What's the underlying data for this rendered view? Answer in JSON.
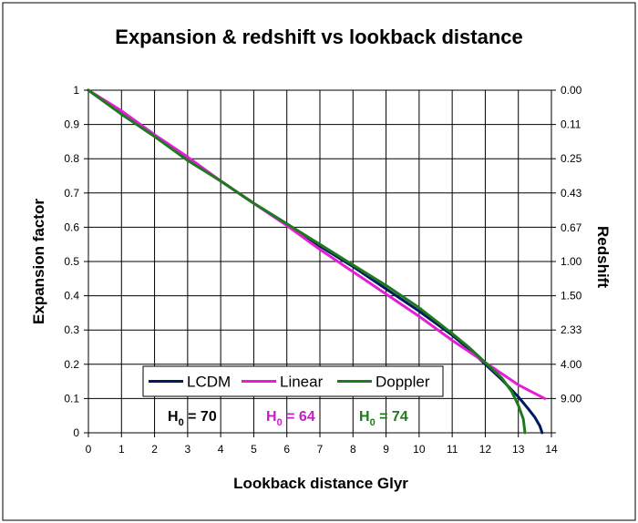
{
  "chart_data": {
    "type": "line",
    "title": "Expansion & redshift vs lookback distance",
    "xlabel": "Lookback distance Glyr",
    "ylabel": "Expansion factor",
    "y2label": "Redshift",
    "xlim": [
      0,
      14
    ],
    "ylim": [
      0,
      1
    ],
    "x_ticks": [
      "0",
      "1",
      "2",
      "3",
      "4",
      "5",
      "6",
      "7",
      "8",
      "9",
      "10",
      "11",
      "12",
      "13",
      "14"
    ],
    "y_ticks": [
      "0",
      "0.1",
      "0.2",
      "0.3",
      "0.4",
      "0.5",
      "0.6",
      "0.7",
      "0.8",
      "0.9",
      "1"
    ],
    "y2_ticks": [
      "9.00",
      "4.00",
      "2.33",
      "1.50",
      "1.00",
      "0.67",
      "0.43",
      "0.25",
      "0.11",
      "0.00"
    ],
    "grid": true,
    "legend_position": "bottom-center",
    "series": [
      {
        "name": "LCDM",
        "color": "#001a5e",
        "points": [
          [
            0,
            1
          ],
          [
            1,
            0.93
          ],
          [
            2,
            0.865
          ],
          [
            3,
            0.8
          ],
          [
            4,
            0.735
          ],
          [
            5,
            0.67
          ],
          [
            6,
            0.61
          ],
          [
            7,
            0.545
          ],
          [
            8,
            0.485
          ],
          [
            9,
            0.42
          ],
          [
            10,
            0.355
          ],
          [
            11,
            0.285
          ],
          [
            11.5,
            0.245
          ],
          [
            12,
            0.2
          ],
          [
            12.5,
            0.155
          ],
          [
            13,
            0.105
          ],
          [
            13.3,
            0.07
          ],
          [
            13.5,
            0.045
          ],
          [
            13.65,
            0.02
          ],
          [
            13.72,
            0
          ]
        ]
      },
      {
        "name": "Linear",
        "color": "#e41ed6",
        "points": [
          [
            0,
            1
          ],
          [
            1,
            0.94
          ],
          [
            2,
            0.87
          ],
          [
            3,
            0.805
          ],
          [
            4,
            0.735
          ],
          [
            5,
            0.67
          ],
          [
            6,
            0.605
          ],
          [
            7,
            0.535
          ],
          [
            8,
            0.47
          ],
          [
            9,
            0.405
          ],
          [
            10,
            0.34
          ],
          [
            11,
            0.27
          ],
          [
            12,
            0.205
          ],
          [
            13,
            0.14
          ],
          [
            13.8,
            0.1
          ]
        ]
      },
      {
        "name": "Doppler",
        "color": "#1e7a1e",
        "points": [
          [
            0,
            1
          ],
          [
            1,
            0.93
          ],
          [
            2,
            0.865
          ],
          [
            3,
            0.795
          ],
          [
            4,
            0.735
          ],
          [
            5,
            0.67
          ],
          [
            6,
            0.61
          ],
          [
            7,
            0.55
          ],
          [
            8,
            0.49
          ],
          [
            9,
            0.43
          ],
          [
            10,
            0.365
          ],
          [
            11,
            0.29
          ],
          [
            11.5,
            0.25
          ],
          [
            12,
            0.205
          ],
          [
            12.5,
            0.16
          ],
          [
            12.8,
            0.12
          ],
          [
            13,
            0.08
          ],
          [
            13.15,
            0.04
          ],
          [
            13.2,
            0
          ]
        ]
      }
    ],
    "annotations": [
      {
        "label": "H",
        "sub": "0",
        "rest": " = 70",
        "color": "#000000"
      },
      {
        "label": "H",
        "sub": "0",
        "rest": " = 64",
        "color": "#c81ec8"
      },
      {
        "label": "H",
        "sub": "0",
        "rest": " = 74",
        "color": "#1e7a1e"
      }
    ]
  }
}
